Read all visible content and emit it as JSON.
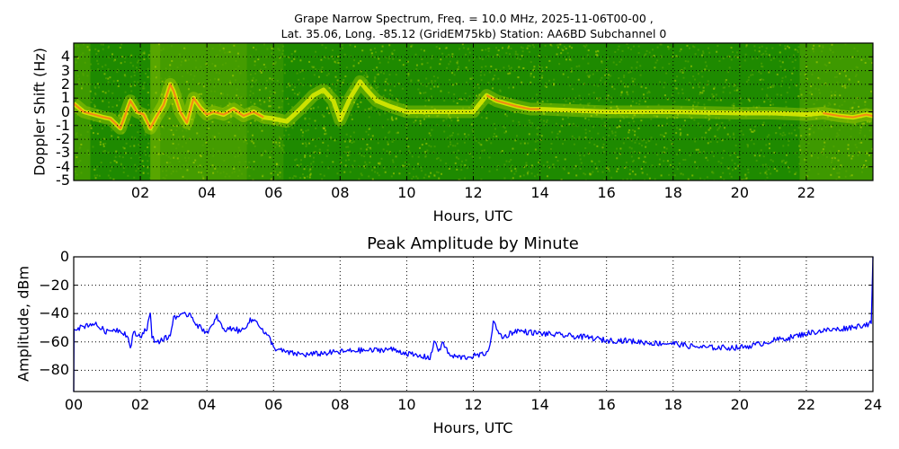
{
  "figure": {
    "title_line1": "Grape Narrow Spectrum, Freq. = 10.0 MHz, 2025-11-06T00-00 ,",
    "title_line2": "Lat.  35.06, Long. -85.12 (GridEM75kb) Station: AA6BD Subchannel 0"
  },
  "colors": {
    "spectrogram_background": "#1e8a00",
    "spectrogram_noise": "#5aa800",
    "trace_yellow": "#e8f000",
    "trace_red": "#ff6a1a",
    "amplitude_line": "#0000ff",
    "grid": "#000000"
  },
  "chart_data": [
    {
      "type": "heatmap",
      "title": "Grape Narrow Spectrum, Freq. = 10.0 MHz, 2025-11-06T00-00 , Lat.  35.06, Long. -85.12 (GridEM75kb) Station: AA6BD Subchannel 0",
      "xlabel": "Hours, UTC",
      "ylabel": "Doppler Shift (Hz)",
      "xlim": [
        0,
        24
      ],
      "ylim": [
        -5,
        5
      ],
      "xticks": [
        "02",
        "04",
        "06",
        "08",
        "10",
        "12",
        "14",
        "16",
        "18",
        "20",
        "22"
      ],
      "yticks": [
        "4",
        "3",
        "2",
        "1",
        "0",
        "-1",
        "-2",
        "-3",
        "-4",
        "-5"
      ],
      "grid": true,
      "dominant_trace": {
        "description": "Doppler shift of strongest signal (yellow/red ridge)",
        "x_hours": [
          0.0,
          0.3,
          0.6,
          0.9,
          1.1,
          1.4,
          1.7,
          1.9,
          2.1,
          2.3,
          2.5,
          2.7,
          2.9,
          3.0,
          3.2,
          3.4,
          3.6,
          3.8,
          4.0,
          4.2,
          4.5,
          4.8,
          5.1,
          5.4,
          5.7,
          6.0,
          6.4,
          6.8,
          7.2,
          7.5,
          7.8,
          8.0,
          8.3,
          8.6,
          8.8,
          9.1,
          9.5,
          10.0,
          11.0,
          12.0,
          12.4,
          12.7,
          13.0,
          13.3,
          13.7,
          14.0,
          15.0,
          16.0,
          18.0,
          20.0,
          21.0,
          22.0,
          22.5,
          23.0,
          23.4,
          23.8,
          24.0
        ],
        "y_hz": [
          0.6,
          0.0,
          -0.2,
          -0.4,
          -0.5,
          -1.2,
          0.8,
          0.0,
          -0.2,
          -1.2,
          -0.3,
          0.5,
          2.0,
          1.5,
          0.0,
          -0.8,
          1.0,
          0.3,
          -0.2,
          0.0,
          -0.2,
          0.2,
          -0.3,
          0.0,
          -0.4,
          -0.5,
          -0.7,
          0.2,
          1.2,
          1.6,
          0.8,
          -0.6,
          1.0,
          2.2,
          1.6,
          0.8,
          0.4,
          0.0,
          0.0,
          0.0,
          1.2,
          0.8,
          0.6,
          0.4,
          0.2,
          0.2,
          0.1,
          0.0,
          0.0,
          -0.1,
          -0.1,
          -0.2,
          -0.1,
          -0.3,
          -0.4,
          -0.2,
          -0.3
        ]
      },
      "colormap": "green (low) to yellow to red (high)"
    },
    {
      "type": "line",
      "title": "Peak Amplitude by Minute",
      "xlabel": "Hours, UTC",
      "ylabel": "Amplitude, dBm",
      "xlim": [
        0,
        24
      ],
      "ylim": [
        -95,
        0
      ],
      "xticks": [
        "00",
        "02",
        "04",
        "06",
        "08",
        "10",
        "12",
        "14",
        "16",
        "18",
        "20",
        "22",
        "24"
      ],
      "yticks": [
        "0",
        "−20",
        "−40",
        "−60",
        "−80"
      ],
      "grid": true,
      "series": [
        {
          "name": "Peak Amplitude",
          "x": [
            0.0,
            0.01,
            0.2,
            0.4,
            0.6,
            0.8,
            1.0,
            1.2,
            1.4,
            1.6,
            1.7,
            1.8,
            2.0,
            2.2,
            2.3,
            2.35,
            2.5,
            2.7,
            2.9,
            3.0,
            3.2,
            3.5,
            3.7,
            3.8,
            4.0,
            4.2,
            4.3,
            4.5,
            4.8,
            5.0,
            5.3,
            5.5,
            5.7,
            5.9,
            6.0,
            6.2,
            6.5,
            7.0,
            7.5,
            8.0,
            8.5,
            9.0,
            9.5,
            10.0,
            10.3,
            10.7,
            10.85,
            10.95,
            11.1,
            11.3,
            11.7,
            12.0,
            12.3,
            12.5,
            12.6,
            12.7,
            12.9,
            13.1,
            13.3,
            13.6,
            14.0,
            14.5,
            15.0,
            15.5,
            16.0,
            16.5,
            17.0,
            17.5,
            18.0,
            18.5,
            19.0,
            19.5,
            20.0,
            20.5,
            21.0,
            21.5,
            22.0,
            22.5,
            23.0,
            23.5,
            23.95,
            24.0
          ],
          "values": [
            -95,
            -50,
            -50,
            -48,
            -47,
            -50,
            -53,
            -51,
            -52,
            -55,
            -64,
            -54,
            -56,
            -50,
            -40,
            -57,
            -60,
            -58,
            -56,
            -42,
            -42,
            -40,
            -48,
            -50,
            -53,
            -48,
            -42,
            -52,
            -50,
            -53,
            -45,
            -45,
            -53,
            -58,
            -64,
            -66,
            -68,
            -69,
            -68,
            -67,
            -66,
            -66,
            -65,
            -68,
            -70,
            -71,
            -59,
            -66,
            -61,
            -70,
            -71,
            -70,
            -69,
            -64,
            -44,
            -52,
            -57,
            -54,
            -52,
            -53,
            -54,
            -55,
            -56,
            -57,
            -59,
            -59,
            -60,
            -61,
            -61,
            -63,
            -64,
            -64,
            -64,
            -62,
            -59,
            -57,
            -54,
            -52,
            -51,
            -49,
            -47,
            0
          ]
        }
      ]
    }
  ],
  "top_chart": {
    "ylabel": "Doppler Shift (Hz)",
    "xlabel": "Hours, UTC"
  },
  "bottom_chart": {
    "title": "Peak Amplitude by Minute",
    "ylabel": "Amplitude, dBm",
    "xlabel": "Hours, UTC"
  }
}
